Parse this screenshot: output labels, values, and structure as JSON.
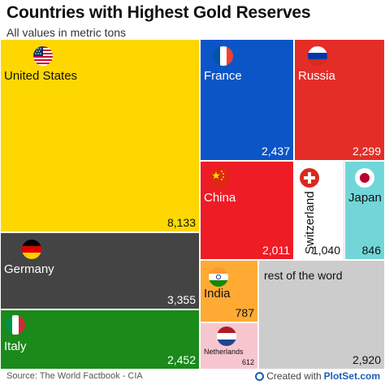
{
  "header": {
    "title": "Countries with Highest Gold Reserves",
    "subtitle": "All values in metric tons"
  },
  "footer": {
    "source": "Source: The World Factbook - CIA",
    "created_with": "Created with",
    "brand": "PlotSet.com"
  },
  "chart_data": {
    "type": "treemap",
    "title": "Countries with Highest Gold Reserves",
    "subtitle": "All values in metric tons",
    "items": [
      {
        "name": "United States",
        "label": "8,133",
        "value": 8133,
        "color": "#ffd700",
        "text_color": "#111111",
        "flag": "us-flag"
      },
      {
        "name": "France",
        "label": "2,437",
        "value": 2437,
        "color": "#0b55c7",
        "text_color": "#ffffff",
        "flag": "fr-flag"
      },
      {
        "name": "Russia",
        "label": "2,299",
        "value": 2299,
        "color": "#e52d27",
        "text_color": "#ffffff",
        "flag": "ru-flag"
      },
      {
        "name": "China",
        "label": "2,011",
        "value": 2011,
        "color": "#ee1c25",
        "text_color": "#ffffff",
        "flag": "cn-flag"
      },
      {
        "name": "Switzerland",
        "label": "1,040",
        "value": 1040,
        "color": "#ffffff",
        "text_color": "#111111",
        "flag": "ch-flag"
      },
      {
        "name": "Japan",
        "label": "846",
        "value": 846,
        "color": "#72d6d8",
        "text_color": "#111111",
        "flag": "jp-flag"
      },
      {
        "name": "Germany",
        "label": "3,355",
        "value": 3355,
        "color": "#444444",
        "text_color": "#ffffff",
        "flag": "de-flag"
      },
      {
        "name": "Italy",
        "label": "2,452",
        "value": 2452,
        "color": "#1a8a1a",
        "text_color": "#ffffff",
        "flag": "it-flag"
      },
      {
        "name": "India",
        "label": "787",
        "value": 787,
        "color": "#ffaa33",
        "text_color": "#111111",
        "flag": "in-flag"
      },
      {
        "name": "Netherlands",
        "label": "612",
        "value": 612,
        "color": "#f7c6cf",
        "text_color": "#111111",
        "flag": "nl-flag"
      },
      {
        "name": "rest of the word",
        "label": "2,920",
        "value": 2920,
        "color": "#cccccc",
        "text_color": "#111111",
        "flag": ""
      }
    ]
  }
}
